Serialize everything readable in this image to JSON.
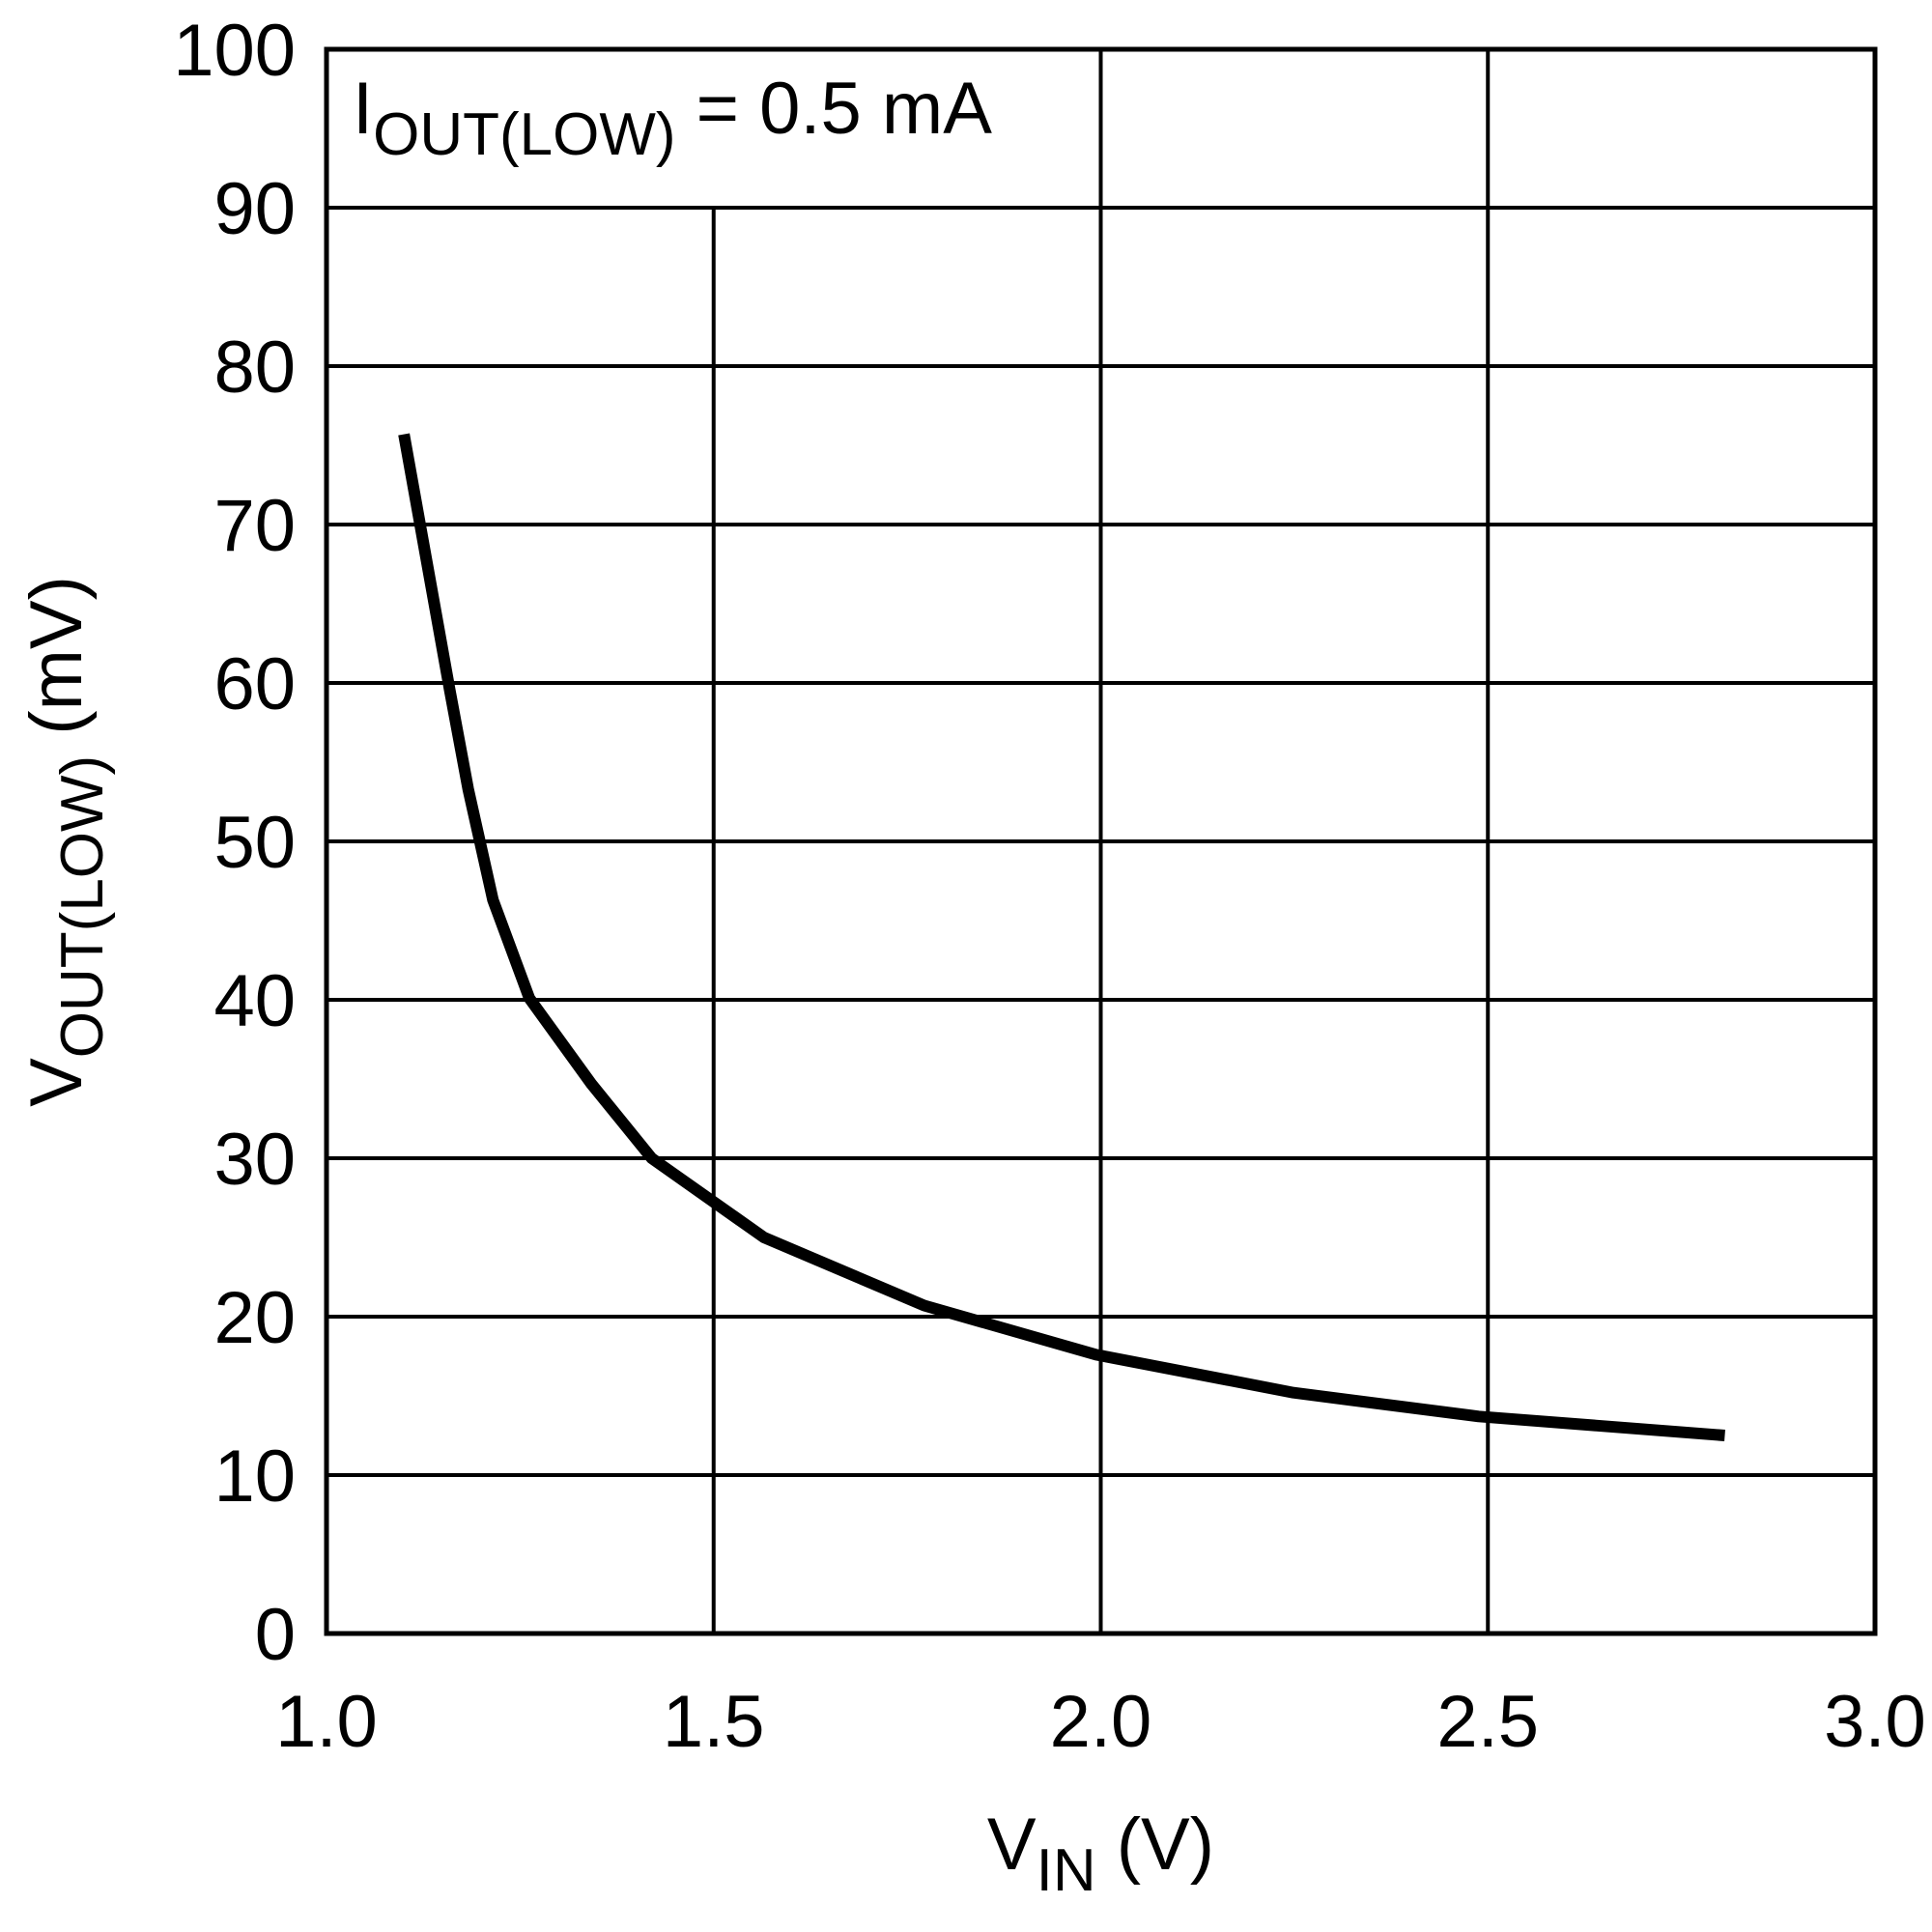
{
  "chart_data": {
    "type": "line",
    "annotation": {
      "main": "I",
      "sub": "OUT(LOW)",
      "rest": " = 0.5 mA"
    },
    "x_label": {
      "main": "V",
      "sub": "IN",
      "rest": " (V)"
    },
    "y_label": {
      "main": "V",
      "sub": "OUT(LOW)",
      "rest": " (mV)"
    },
    "x": [
      1.1,
      1.159,
      1.183,
      1.215,
      1.262,
      1.342,
      1.42,
      1.565,
      1.772,
      1.994,
      2.249,
      2.488,
      2.806
    ],
    "series": [
      {
        "color": "#000000",
        "values": [
          75.7,
          59.6,
          53.3,
          46.3,
          40.1,
          34.7,
          30.0,
          25.0,
          20.7,
          17.6,
          15.2,
          13.7,
          12.5
        ]
      }
    ],
    "xlim": [
      1,
      3
    ],
    "xticks": [
      {
        "value": 1,
        "label": "1.0"
      },
      {
        "value": 1.5,
        "label": "1.5"
      },
      {
        "value": 2,
        "label": "2.0"
      },
      {
        "value": 2.5,
        "label": "2.5"
      },
      {
        "value": 3,
        "label": "3.0"
      }
    ],
    "ylim": [
      0,
      100
    ],
    "yticks": [
      0,
      10,
      20,
      30,
      40,
      50,
      60,
      70,
      80,
      90,
      100
    ],
    "grid": true
  }
}
